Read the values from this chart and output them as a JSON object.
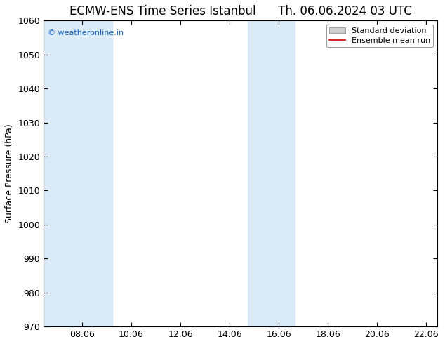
{
  "title_left": "ECMW-ENS Time Series Istanbul",
  "title_right": "Th. 06.06.2024 03 UTC",
  "ylabel": "Surface Pressure (hPa)",
  "ylim": [
    970,
    1060
  ],
  "yticks": [
    970,
    980,
    990,
    1000,
    1010,
    1020,
    1030,
    1040,
    1050,
    1060
  ],
  "xlim": [
    6.5,
    22.5
  ],
  "xticks": [
    8.06,
    10.06,
    12.06,
    14.06,
    16.06,
    18.06,
    20.06,
    22.06
  ],
  "xtick_labels": [
    "08.06",
    "10.06",
    "12.06",
    "14.06",
    "16.06",
    "18.06",
    "20.06",
    "22.06"
  ],
  "shaded_bands": [
    {
      "x_start": 6.5,
      "x_end": 9.3
    },
    {
      "x_start": 14.8,
      "x_end": 16.7
    }
  ],
  "shade_color": "#daeaf7",
  "watermark_text": "© weatheronline.in",
  "watermark_color": "#1565C0",
  "background_color": "#ffffff",
  "axes_bg_color": "#ffffff",
  "tick_color": "#000000",
  "title_fontsize": 12,
  "label_fontsize": 9,
  "watermark_fontsize": 8,
  "legend_std_color": "#d0d0d0",
  "legend_std_edge": "#888888",
  "legend_mean_color": "#cc0000",
  "legend_fontsize": 8
}
